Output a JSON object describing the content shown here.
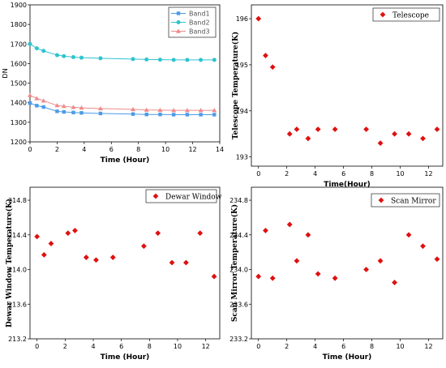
{
  "chart_data": [
    {
      "type": "line",
      "title": "",
      "xlabel": "Time (Hour)",
      "ylabel": "DN",
      "xlim": [
        0,
        14
      ],
      "ylim": [
        1200,
        1900
      ],
      "xticks": [
        "0",
        "2",
        "4",
        "6",
        "8",
        "10",
        "12",
        "14"
      ],
      "yticks": [
        "1200",
        "1300",
        "1400",
        "1500",
        "1600",
        "1700",
        "1800",
        "1900"
      ],
      "x": [
        0,
        0.5,
        1,
        2,
        2.5,
        3.2,
        3.8,
        5.2,
        7.6,
        8.6,
        9.6,
        10.6,
        11.6,
        12.6,
        13.6
      ],
      "series": [
        {
          "name": "Band1",
          "color": "#4c9be8",
          "marker": "square",
          "values": [
            1398,
            1385,
            1378,
            1356,
            1353,
            1350,
            1348,
            1345,
            1342,
            1340,
            1340,
            1339,
            1339,
            1339,
            1339
          ]
        },
        {
          "name": "Band2",
          "color": "#2ec4cf",
          "marker": "circle",
          "values": [
            1700,
            1678,
            1665,
            1643,
            1638,
            1633,
            1630,
            1627,
            1623,
            1621,
            1620,
            1619,
            1619,
            1619,
            1619
          ]
        },
        {
          "name": "Band3",
          "color": "#f08a8a",
          "marker": "triangle",
          "values": [
            1438,
            1422,
            1410,
            1386,
            1382,
            1377,
            1374,
            1370,
            1366,
            1363,
            1362,
            1361,
            1361,
            1361,
            1361
          ]
        }
      ],
      "legend": "top-right"
    },
    {
      "type": "scatter",
      "title": "",
      "xlabel": "Time(Hour)",
      "ylabel": "Telescope Temperature(K)",
      "xlim": [
        -0.5,
        13
      ],
      "ylim": [
        192.8,
        196.3
      ],
      "xticks": [
        "0",
        "2",
        "4",
        "6",
        "8",
        "10",
        "12"
      ],
      "yticks": [
        "193",
        "194",
        "195",
        "196"
      ],
      "x": [
        0,
        0.5,
        1,
        2.2,
        2.7,
        3.5,
        4.2,
        5.4,
        7.6,
        8.6,
        9.6,
        10.6,
        11.6,
        12.6
      ],
      "series": [
        {
          "name": "Telescope",
          "color": "#e01010",
          "marker": "diamond",
          "values": [
            196.0,
            195.2,
            194.95,
            193.5,
            193.6,
            193.4,
            193.6,
            193.6,
            193.6,
            193.3,
            193.5,
            193.5,
            193.4,
            193.6
          ]
        }
      ],
      "legend": "top-right"
    },
    {
      "type": "scatter",
      "title": "",
      "xlabel": "Time (Hour)",
      "ylabel": "Dewar Window Temperature(K)",
      "xlim": [
        -0.5,
        13
      ],
      "ylim": [
        213.2,
        214.95
      ],
      "xticks": [
        "0",
        "2",
        "4",
        "6",
        "8",
        "10",
        "12"
      ],
      "yticks": [
        "213.2",
        "213.6",
        "214.0",
        "214.4",
        "214.8"
      ],
      "x": [
        0,
        0.5,
        1,
        2.2,
        2.7,
        3.5,
        4.2,
        5.4,
        7.6,
        8.6,
        9.6,
        10.6,
        11.6,
        12.6
      ],
      "series": [
        {
          "name": "Dewar Window",
          "color": "#e01010",
          "marker": "diamond",
          "values": [
            214.38,
            214.17,
            214.3,
            214.42,
            214.45,
            214.14,
            214.11,
            214.14,
            214.27,
            214.42,
            214.08,
            214.08,
            214.42,
            213.92
          ]
        }
      ],
      "legend": "top-right"
    },
    {
      "type": "scatter",
      "title": "",
      "xlabel": "Time (Hour)",
      "ylabel": "Scan Mirror Temperature(K)",
      "xlim": [
        -0.5,
        13
      ],
      "ylim": [
        233.2,
        234.95
      ],
      "xticks": [
        "0",
        "2",
        "4",
        "6",
        "8",
        "10",
        "12"
      ],
      "yticks": [
        "233.2",
        "233.6",
        "234.0",
        "234.4",
        "234.8"
      ],
      "x": [
        0,
        0.5,
        1,
        2.2,
        2.7,
        3.5,
        4.2,
        5.4,
        7.6,
        8.6,
        9.6,
        10.6,
        11.6,
        12.6
      ],
      "series": [
        {
          "name": "Scan Mirror",
          "color": "#e01010",
          "marker": "diamond",
          "values": [
            233.92,
            234.45,
            233.9,
            234.52,
            234.1,
            234.4,
            233.95,
            233.9,
            234.0,
            234.1,
            233.85,
            234.4,
            234.27,
            234.12
          ]
        }
      ],
      "legend": "top-right"
    }
  ]
}
